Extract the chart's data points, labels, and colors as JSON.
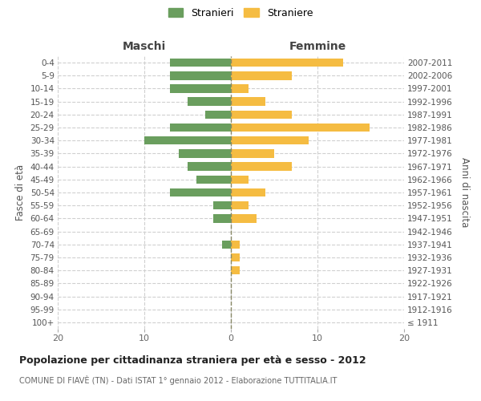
{
  "age_groups": [
    "100+",
    "95-99",
    "90-94",
    "85-89",
    "80-84",
    "75-79",
    "70-74",
    "65-69",
    "60-64",
    "55-59",
    "50-54",
    "45-49",
    "40-44",
    "35-39",
    "30-34",
    "25-29",
    "20-24",
    "15-19",
    "10-14",
    "5-9",
    "0-4"
  ],
  "birth_years": [
    "≤ 1911",
    "1912-1916",
    "1917-1921",
    "1922-1926",
    "1927-1931",
    "1932-1936",
    "1937-1941",
    "1942-1946",
    "1947-1951",
    "1952-1956",
    "1957-1961",
    "1962-1966",
    "1967-1971",
    "1972-1976",
    "1977-1981",
    "1982-1986",
    "1987-1991",
    "1992-1996",
    "1997-2001",
    "2002-2006",
    "2007-2011"
  ],
  "maschi": [
    0,
    0,
    0,
    0,
    0,
    0,
    1,
    0,
    2,
    2,
    7,
    4,
    5,
    6,
    10,
    7,
    3,
    5,
    7,
    7,
    7
  ],
  "femmine": [
    0,
    0,
    0,
    0,
    1,
    1,
    1,
    0,
    3,
    2,
    4,
    2,
    7,
    5,
    9,
    16,
    7,
    4,
    2,
    7,
    13
  ],
  "color_maschi": "#6a9e5e",
  "color_femmine": "#f5bc42",
  "title": "Popolazione per cittadinanza straniera per età e sesso - 2012",
  "subtitle": "COMUNE DI FIAVÈ (TN) - Dati ISTAT 1° gennaio 2012 - Elaborazione TUTTITALIA.IT",
  "xlabel_left": "Maschi",
  "xlabel_right": "Femmine",
  "ylabel_left": "Fasce di età",
  "ylabel_right": "Anni di nascita",
  "legend_maschi": "Stranieri",
  "legend_femmine": "Straniere",
  "xlim": 20,
  "background_color": "#ffffff",
  "grid_color": "#d0d0d0"
}
